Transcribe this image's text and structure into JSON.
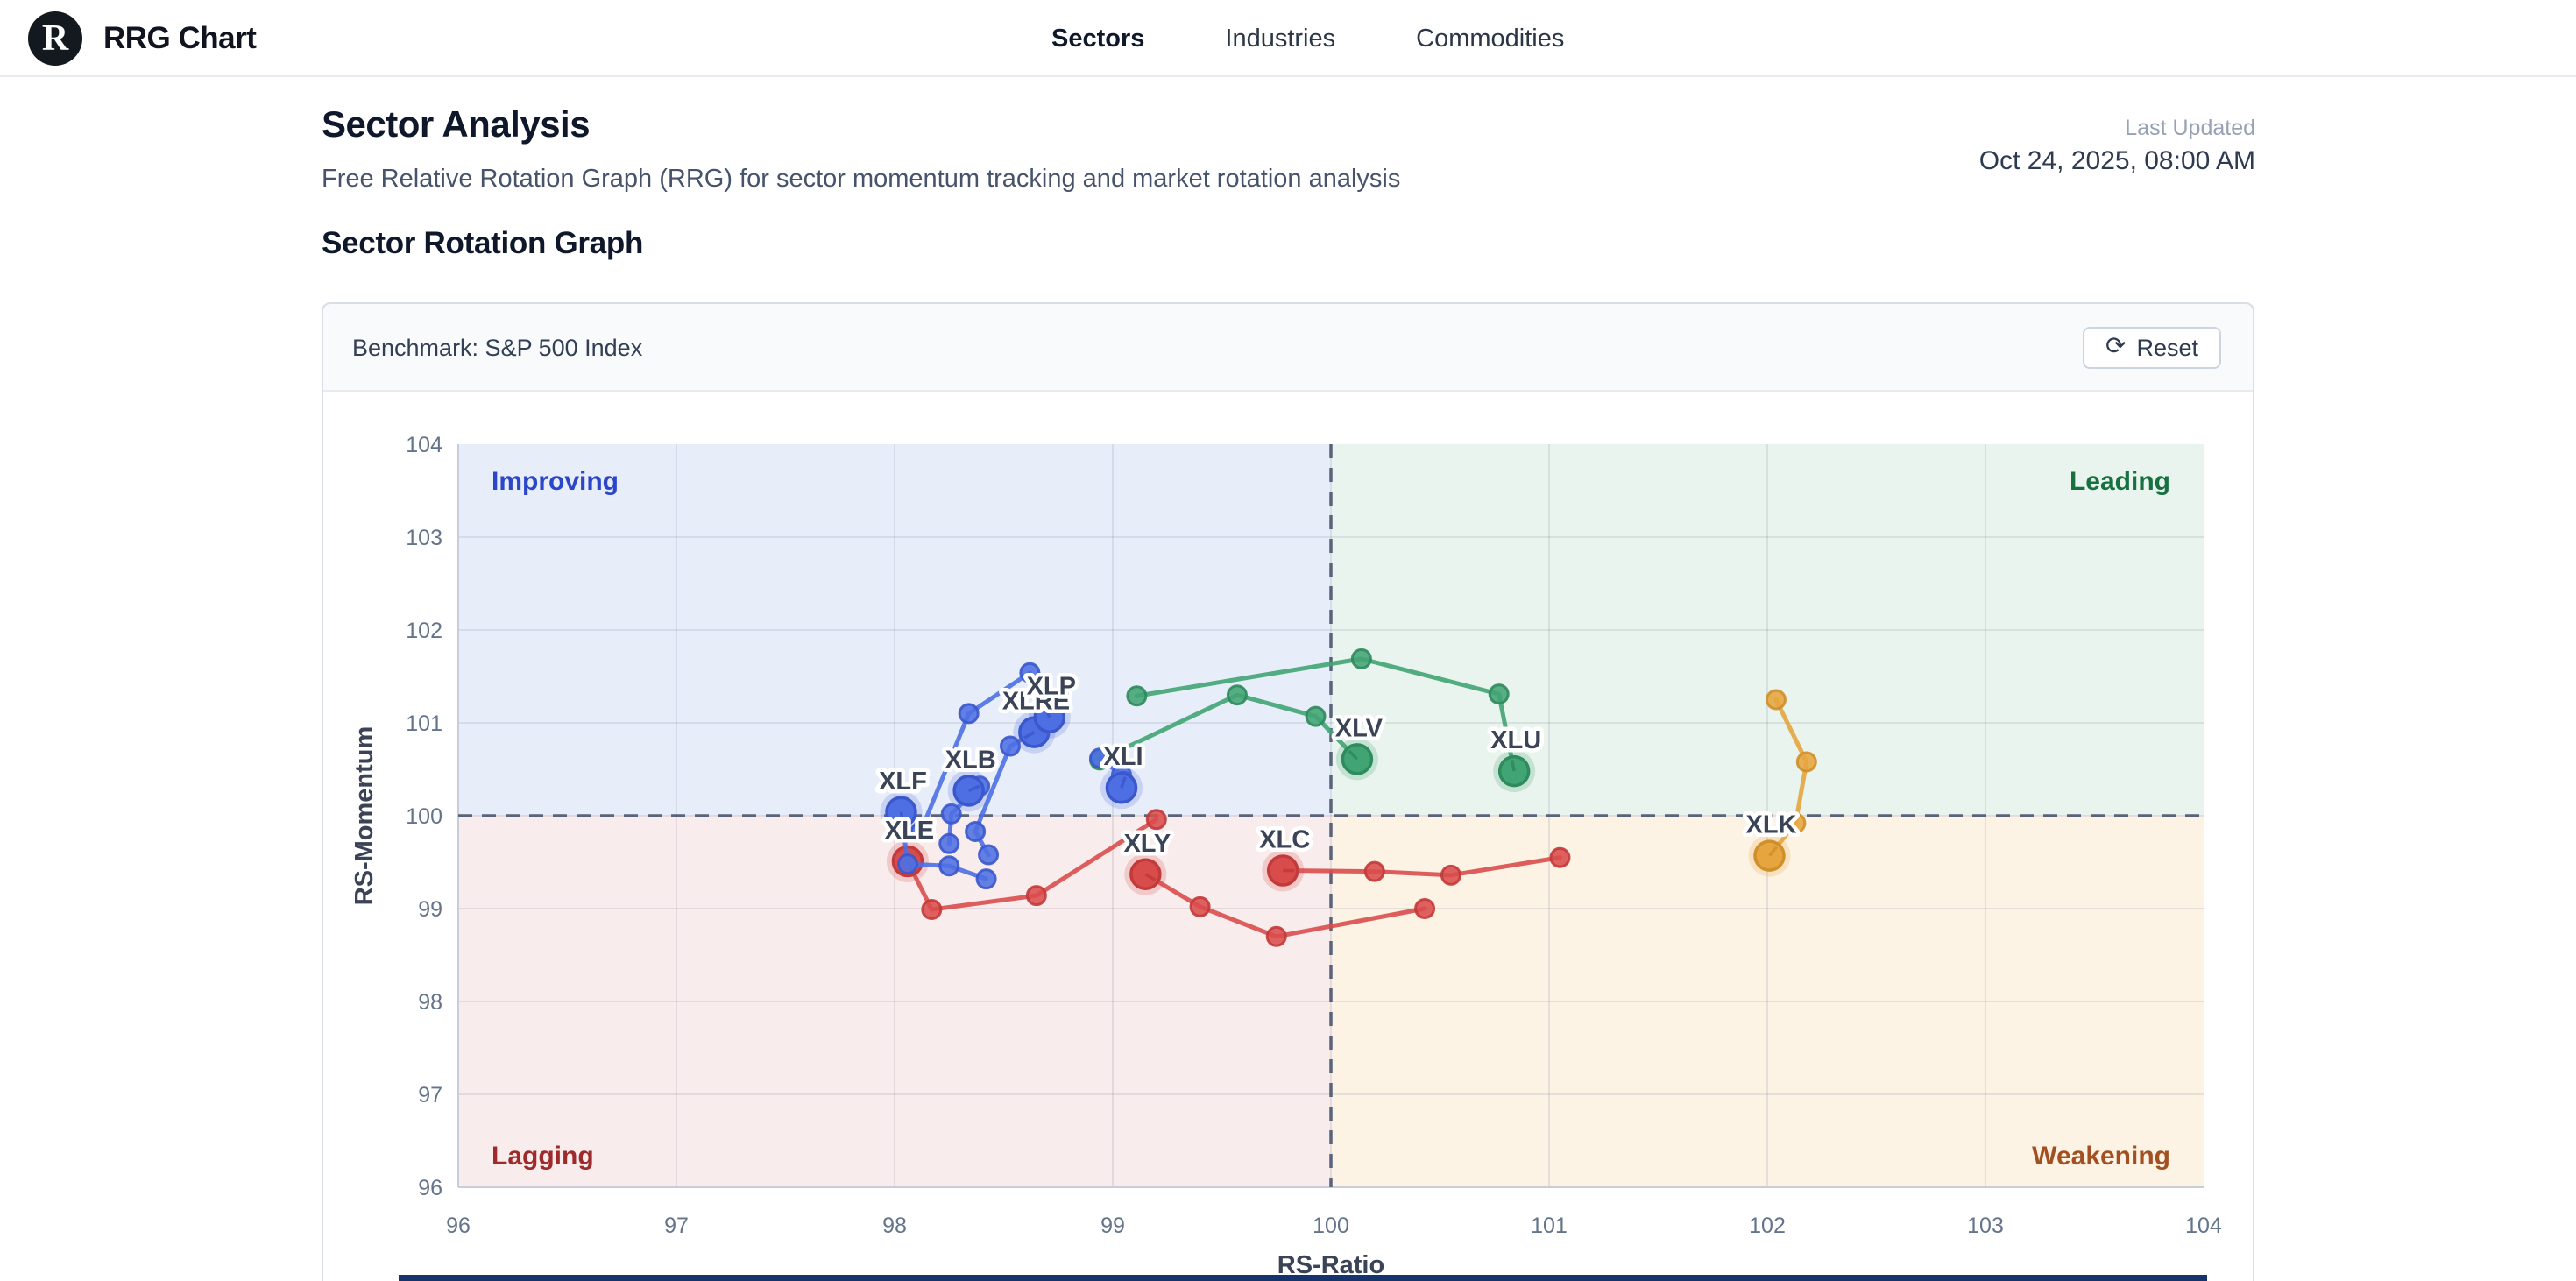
{
  "header": {
    "logo_letter": "R",
    "brand": "RRG Chart",
    "nav": [
      {
        "label": "Sectors",
        "active": true
      },
      {
        "label": "Industries",
        "active": false
      },
      {
        "label": "Commodities",
        "active": false
      }
    ]
  },
  "page": {
    "title": "Sector Analysis",
    "subtitle": "Free Relative Rotation Graph (RRG) for sector momentum tracking and market rotation analysis",
    "last_updated_label": "Last Updated",
    "last_updated_value": "Oct 24, 2025, 08:00 AM",
    "section_title": "Sector Rotation Graph"
  },
  "panel": {
    "benchmark_label": "Benchmark: S&P 500 Index",
    "reset_icon": "⟳",
    "reset_label": "Reset"
  },
  "chart_data": {
    "type": "scatter",
    "title": "Sector Rotation Graph",
    "xlabel": "RS-Ratio",
    "ylabel": "RS-Momentum",
    "xlim": [
      96,
      104
    ],
    "ylim": [
      96,
      104
    ],
    "x_ticks": [
      96,
      97,
      98,
      99,
      100,
      101,
      102,
      103,
      104
    ],
    "y_ticks": [
      96,
      97,
      98,
      99,
      100,
      101,
      102,
      103,
      104
    ],
    "center_lines": {
      "x": 100,
      "y": 100,
      "color": "#59637a",
      "style": "dashed"
    },
    "grid": {
      "on": true,
      "color": "#64748b",
      "opacity": 0.15
    },
    "axis_text_color": "#64748b",
    "axis_title_color": "#3b4456",
    "label_text_color": "#3b4456",
    "quadrants": [
      {
        "name": "Improving",
        "corner": "top-left",
        "bg": "#e8eef9",
        "label_color": "#2b46c7"
      },
      {
        "name": "Leading",
        "corner": "top-right",
        "bg": "#e9f4ee",
        "label_color": "#17703f"
      },
      {
        "name": "Lagging",
        "corner": "bottom-left",
        "bg": "#f9ecec",
        "label_color": "#9e2b2b"
      },
      {
        "name": "Weakening",
        "corner": "bottom-right",
        "bg": "#fdf3e4",
        "label_color": "#a24f22"
      }
    ],
    "points_order": "oldest-to-newest, last point is current head",
    "series": [
      {
        "name": "XLV",
        "color": "#41a473",
        "stroke": "#2f8a5d",
        "points": [
          [
            98.94,
            100.6
          ],
          [
            99.57,
            101.3
          ],
          [
            99.93,
            101.07
          ],
          [
            100.12,
            100.61
          ]
        ]
      },
      {
        "name": "XLU",
        "color": "#41a473",
        "stroke": "#2f8a5d",
        "points": [
          [
            99.11,
            101.29
          ],
          [
            100.14,
            101.69
          ],
          [
            100.77,
            101.31
          ],
          [
            100.84,
            100.48
          ]
        ]
      },
      {
        "name": "XLE",
        "color": "#d94c4c",
        "stroke": "#c23a3a",
        "points": [
          [
            99.2,
            99.96
          ],
          [
            98.65,
            99.14
          ],
          [
            98.17,
            98.99
          ],
          [
            98.06,
            99.51
          ]
        ]
      },
      {
        "name": "XLY",
        "color": "#d94c4c",
        "stroke": "#c23a3a",
        "points": [
          [
            100.43,
            99.0
          ],
          [
            99.75,
            98.7
          ],
          [
            99.4,
            99.02
          ],
          [
            99.15,
            99.37
          ]
        ]
      },
      {
        "name": "XLC",
        "color": "#d94c4c",
        "stroke": "#c23a3a",
        "points": [
          [
            101.05,
            99.55
          ],
          [
            100.55,
            99.36
          ],
          [
            100.2,
            99.4
          ],
          [
            99.78,
            99.41
          ]
        ]
      },
      {
        "name": "XLF",
        "color": "#4d6fe3",
        "stroke": "#3a58cc",
        "points": [
          [
            98.42,
            99.32
          ],
          [
            98.25,
            99.46
          ],
          [
            98.06,
            99.48
          ],
          [
            98.03,
            100.04
          ]
        ]
      },
      {
        "name": "XLB",
        "color": "#4d6fe3",
        "stroke": "#3a58cc",
        "points": [
          [
            98.25,
            99.7
          ],
          [
            98.26,
            100.02
          ],
          [
            98.39,
            100.32
          ],
          [
            98.34,
            100.27
          ]
        ]
      },
      {
        "name": "XLRE",
        "color": "#4d6fe3",
        "stroke": "#3a58cc",
        "points": [
          [
            98.43,
            99.58
          ],
          [
            98.37,
            99.83
          ],
          [
            98.53,
            100.75
          ],
          [
            98.64,
            100.9
          ]
        ]
      },
      {
        "name": "XLP",
        "color": "#4d6fe3",
        "stroke": "#3a58cc",
        "points": [
          [
            98.12,
            99.83
          ],
          [
            98.34,
            101.1
          ],
          [
            98.62,
            101.54
          ],
          [
            98.71,
            101.06
          ]
        ]
      },
      {
        "name": "XLI",
        "color": "#4d6fe3",
        "stroke": "#3a58cc",
        "points": [
          [
            98.94,
            100.62
          ],
          [
            99.04,
            100.44
          ],
          [
            99.05,
            100.37
          ],
          [
            99.04,
            100.3
          ]
        ]
      },
      {
        "name": "XLK",
        "color": "#e6a53e",
        "stroke": "#cf8f2a",
        "points": [
          [
            102.04,
            101.25
          ],
          [
            102.18,
            100.58
          ],
          [
            102.13,
            99.92
          ],
          [
            102.01,
            99.57
          ]
        ]
      }
    ]
  }
}
